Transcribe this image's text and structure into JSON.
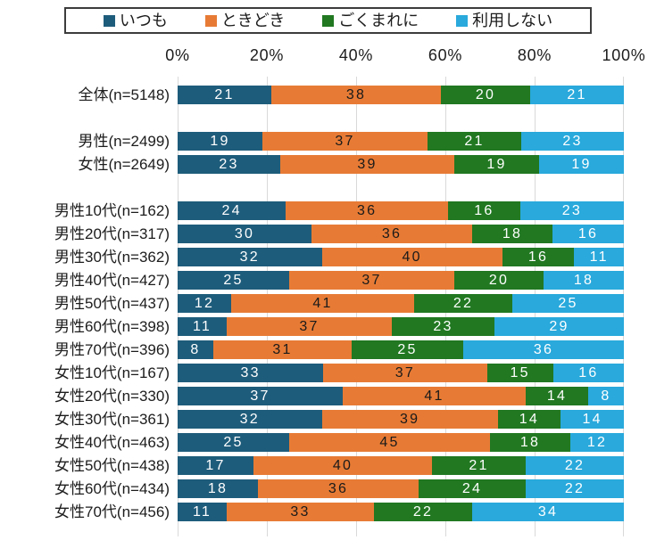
{
  "chart_data": {
    "type": "bar",
    "orientation": "horizontal",
    "stacked": true,
    "normalized_to_100": true,
    "title": "",
    "xlabel": "",
    "ylabel": "",
    "x_axis": {
      "ticks": [
        "0%",
        "20%",
        "40%",
        "60%",
        "80%",
        "100%"
      ],
      "range": [
        0,
        100
      ],
      "grid": true,
      "grid_color": "#D9D9D9"
    },
    "legend": {
      "position": "top",
      "entries": [
        {
          "label": "いつも",
          "color": "#1E5C7B",
          "value_text_color": "#FFFFFF"
        },
        {
          "label": "ときどき",
          "color": "#E77B35",
          "value_text_color": "#1A1A1A"
        },
        {
          "label": "ごくまれに",
          "color": "#217821",
          "value_text_color": "#FFFFFF"
        },
        {
          "label": "利用しない",
          "color": "#29A9DC",
          "value_text_color": "#FFFFFF"
        }
      ]
    },
    "rows": [
      {
        "label": "全体(n=5148)",
        "values": [
          21,
          38,
          20,
          21
        ],
        "gap_before": false
      },
      {
        "label": "男性(n=2499)",
        "values": [
          19,
          37,
          21,
          23
        ],
        "gap_before": true
      },
      {
        "label": "女性(n=2649)",
        "values": [
          23,
          39,
          19,
          19
        ],
        "gap_before": false
      },
      {
        "label": "男性10代(n=162)",
        "values": [
          24,
          36,
          16,
          23
        ],
        "gap_before": true
      },
      {
        "label": "男性20代(n=317)",
        "values": [
          30,
          36,
          18,
          16
        ],
        "gap_before": false
      },
      {
        "label": "男性30代(n=362)",
        "values": [
          32,
          40,
          16,
          11
        ],
        "gap_before": false
      },
      {
        "label": "男性40代(n=427)",
        "values": [
          25,
          37,
          20,
          18
        ],
        "gap_before": false
      },
      {
        "label": "男性50代(n=437)",
        "values": [
          12,
          41,
          22,
          25
        ],
        "gap_before": false
      },
      {
        "label": "男性60代(n=398)",
        "values": [
          11,
          37,
          23,
          29
        ],
        "gap_before": false
      },
      {
        "label": "男性70代(n=396)",
        "values": [
          8,
          31,
          25,
          36
        ],
        "gap_before": false
      },
      {
        "label": "女性10代(n=167)",
        "values": [
          33,
          37,
          15,
          16
        ],
        "gap_before": false
      },
      {
        "label": "女性20代(n=330)",
        "values": [
          37,
          41,
          14,
          8
        ],
        "gap_before": false
      },
      {
        "label": "女性30代(n=361)",
        "values": [
          32,
          39,
          14,
          14
        ],
        "gap_before": false
      },
      {
        "label": "女性40代(n=463)",
        "values": [
          25,
          45,
          18,
          12
        ],
        "gap_before": false
      },
      {
        "label": "女性50代(n=438)",
        "values": [
          17,
          40,
          21,
          22
        ],
        "gap_before": false
      },
      {
        "label": "女性60代(n=434)",
        "values": [
          18,
          36,
          24,
          22
        ],
        "gap_before": false
      },
      {
        "label": "女性70代(n=456)",
        "values": [
          11,
          33,
          22,
          34
        ],
        "gap_before": false
      }
    ]
  },
  "colors": {
    "background": "#FFFFFF",
    "text": "#1C1C1C",
    "legend_border": "#3C3C3C",
    "grid": "#D9D9D9"
  }
}
